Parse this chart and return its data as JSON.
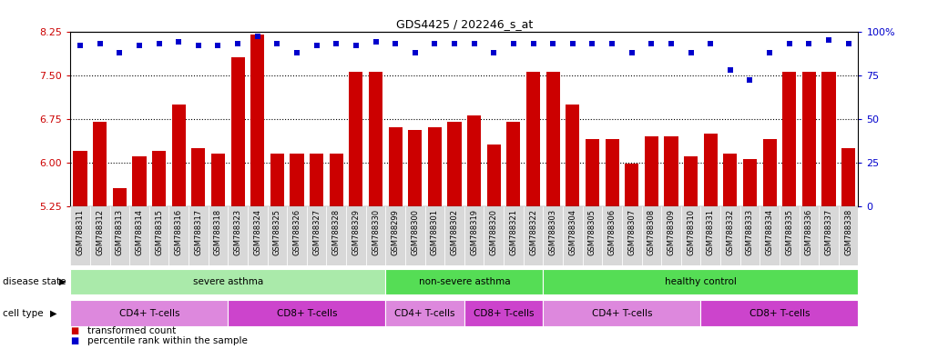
{
  "title": "GDS4425 / 202246_s_at",
  "samples": [
    "GSM788311",
    "GSM788312",
    "GSM788313",
    "GSM788314",
    "GSM788315",
    "GSM788316",
    "GSM788317",
    "GSM788318",
    "GSM788323",
    "GSM788324",
    "GSM788325",
    "GSM788326",
    "GSM788327",
    "GSM788328",
    "GSM788329",
    "GSM788330",
    "GSM788299",
    "GSM788300",
    "GSM788301",
    "GSM788302",
    "GSM788319",
    "GSM788320",
    "GSM788321",
    "GSM788322",
    "GSM788303",
    "GSM788304",
    "GSM788305",
    "GSM788306",
    "GSM788307",
    "GSM788308",
    "GSM788309",
    "GSM788310",
    "GSM788331",
    "GSM788332",
    "GSM788333",
    "GSM788334",
    "GSM788335",
    "GSM788336",
    "GSM788337",
    "GSM788338"
  ],
  "bar_values": [
    6.2,
    6.7,
    5.55,
    6.1,
    6.2,
    7.0,
    6.25,
    6.15,
    7.8,
    8.2,
    6.15,
    6.15,
    6.15,
    6.15,
    7.55,
    7.55,
    6.6,
    6.55,
    6.6,
    6.7,
    6.8,
    6.3,
    6.7,
    7.55,
    7.55,
    7.0,
    6.4,
    6.4,
    5.98,
    6.45,
    6.45,
    6.1,
    6.5,
    6.15,
    6.05,
    6.4,
    7.55,
    7.55,
    7.55,
    6.25
  ],
  "percentile_values": [
    92,
    93,
    88,
    92,
    93,
    94,
    92,
    92,
    93,
    97,
    93,
    88,
    92,
    93,
    92,
    94,
    93,
    88,
    93,
    93,
    93,
    88,
    93,
    93,
    93,
    93,
    93,
    93,
    88,
    93,
    93,
    88,
    93,
    78,
    72,
    88,
    93,
    93,
    95,
    93
  ],
  "ylim_left": [
    5.25,
    8.25
  ],
  "ylim_right": [
    0,
    100
  ],
  "yticks_left": [
    5.25,
    6.0,
    6.75,
    7.5,
    8.25
  ],
  "yticks_right": [
    0,
    25,
    50,
    75,
    100
  ],
  "bar_color": "#cc0000",
  "dot_color": "#0000cc",
  "disease_state_rows": [
    {
      "label": "severe asthma",
      "start": 0,
      "end": 15,
      "color": "#aaeaaa"
    },
    {
      "label": "non-severe asthma",
      "start": 16,
      "end": 23,
      "color": "#55dd55"
    },
    {
      "label": "healthy control",
      "start": 24,
      "end": 39,
      "color": "#55dd55"
    }
  ],
  "cell_type_rows": [
    {
      "label": "CD4+ T-cells",
      "start": 0,
      "end": 7,
      "color": "#dd88dd"
    },
    {
      "label": "CD8+ T-cells",
      "start": 8,
      "end": 15,
      "color": "#cc44cc"
    },
    {
      "label": "CD4+ T-cells",
      "start": 16,
      "end": 19,
      "color": "#dd88dd"
    },
    {
      "label": "CD8+ T-cells",
      "start": 20,
      "end": 23,
      "color": "#cc44cc"
    },
    {
      "label": "CD4+ T-cells",
      "start": 24,
      "end": 31,
      "color": "#dd88dd"
    },
    {
      "label": "CD8+ T-cells",
      "start": 32,
      "end": 39,
      "color": "#cc44cc"
    }
  ],
  "xtick_bg": "#d8d8d8",
  "legend_items": [
    {
      "label": "transformed count",
      "color": "#cc0000"
    },
    {
      "label": "percentile rank within the sample",
      "color": "#0000cc"
    }
  ]
}
